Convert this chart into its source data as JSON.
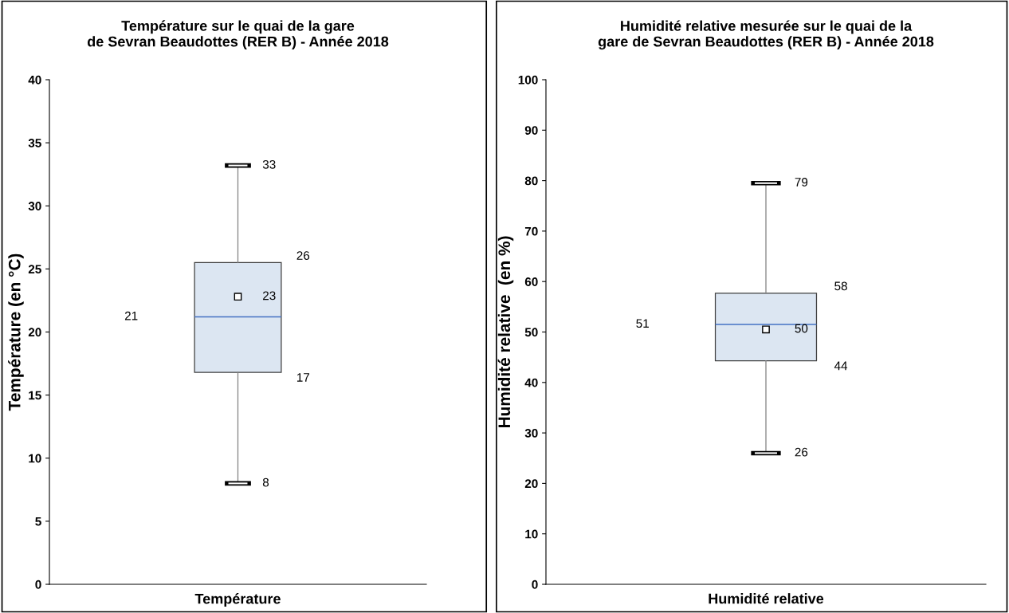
{
  "chart_data": [
    {
      "type": "box",
      "title": "Température sur le quai de la gare\nde Sevran Beaudottes (RER B) - Année 2018",
      "ylabel": "Température (en °C)",
      "categories": [
        "Température"
      ],
      "boxes": [
        {
          "low": 8,
          "q1": 16.8,
          "median": 21.2,
          "q3": 25.5,
          "high": 33.2,
          "mean": 22.8
        }
      ],
      "color": "#dce6f2",
      "ylim": [
        0,
        40
      ],
      "yticks": [
        0,
        5,
        10,
        15,
        20,
        25,
        30,
        35,
        40
      ],
      "grid": false,
      "legend": false,
      "annotations": [
        "33",
        "26",
        "23",
        "21",
        "17",
        "8"
      ]
    },
    {
      "type": "box",
      "title": "Humidité relative mesurée sur le quai de la\ngare de Sevran Beaudottes (RER B) - Année 2018",
      "ylabel": "Humidité relative  (en %)",
      "categories": [
        "Humidité relative"
      ],
      "boxes": [
        {
          "low": 26,
          "q1": 44.3,
          "median": 51.5,
          "q3": 57.7,
          "high": 79.5,
          "mean": 50.5
        }
      ],
      "color": "#dce6f2",
      "ylim": [
        0,
        100
      ],
      "yticks": [
        0,
        10,
        20,
        30,
        40,
        50,
        60,
        70,
        80,
        90,
        100
      ],
      "grid": false,
      "legend": false,
      "annotations": [
        "79",
        "58",
        "51",
        "50",
        "44",
        "26"
      ]
    }
  ]
}
